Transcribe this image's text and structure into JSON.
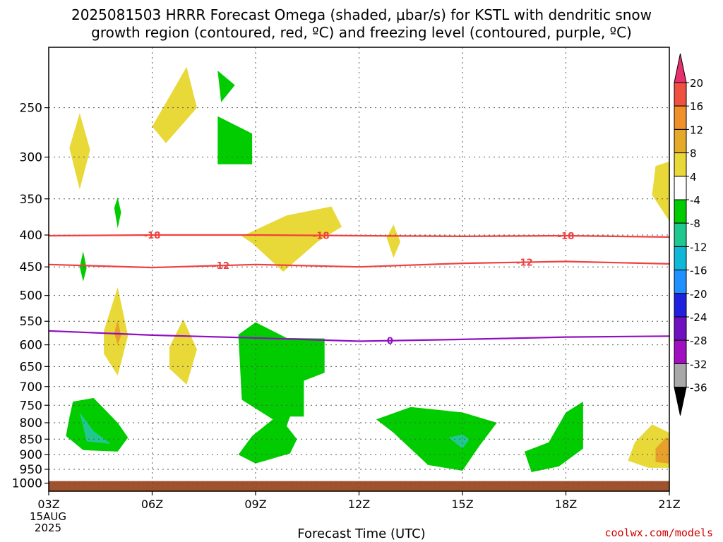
{
  "title_line1": "2025081503 HRRR Forecast Omega (shaded, μbar/s) for KSTL with dendritic snow",
  "title_line2": "growth region (contoured, red, ºC) and freezing level (contoured, purple, ºC)",
  "credit": "coolwx.com/models",
  "chart_data": {
    "type": "contour-timeheight",
    "xlabel": "Forecast Time (UTC)",
    "x_ticks": [
      "03Z",
      "06Z",
      "09Z",
      "12Z",
      "15Z",
      "18Z",
      "21Z"
    ],
    "x_tick_hours": [
      3,
      6,
      9,
      12,
      15,
      18,
      21
    ],
    "x_start_date": [
      "15AUG",
      "2025"
    ],
    "y_ticks": [
      250,
      300,
      350,
      400,
      450,
      500,
      550,
      600,
      650,
      700,
      750,
      800,
      850,
      900,
      950,
      1000
    ],
    "y_range_hpa": [
      200,
      1030
    ],
    "y_scale": "log-pressure",
    "grid": true,
    "colorbar": {
      "labels": [
        "20",
        "16",
        "12",
        "8",
        "4",
        "-4",
        "-8",
        "-12",
        "-16",
        "-20",
        "-24",
        "-28",
        "-32",
        "-36"
      ],
      "colors": [
        "#e8306e",
        "#f05040",
        "#f0902a",
        "#e6aa2a",
        "#e8d838",
        "#ffffff",
        "#00cc00",
        "#20c890",
        "#10b8d8",
        "#1e90ff",
        "#2020e0",
        "#7010c0",
        "#a010c0",
        "#a8a8a8",
        "#000000"
      ]
    },
    "contours": [
      {
        "label": "-18",
        "color": "#f04040",
        "values": [
          {
            "time": 3,
            "hpa": 401
          },
          {
            "time": 6,
            "hpa": 400
          },
          {
            "time": 9,
            "hpa": 400
          },
          {
            "time": 12,
            "hpa": 401
          },
          {
            "time": 15,
            "hpa": 402
          },
          {
            "time": 18,
            "hpa": 401
          },
          {
            "time": 21,
            "hpa": 403
          }
        ],
        "label_times": [
          6,
          10.9,
          18
        ]
      },
      {
        "label": "-12",
        "color": "#f04040",
        "values": [
          {
            "time": 3,
            "hpa": 446
          },
          {
            "time": 6,
            "hpa": 451
          },
          {
            "time": 9,
            "hpa": 446
          },
          {
            "time": 12,
            "hpa": 450
          },
          {
            "time": 15,
            "hpa": 444
          },
          {
            "time": 18,
            "hpa": 441
          },
          {
            "time": 21,
            "hpa": 445
          }
        ],
        "label_times": [
          8,
          16.8
        ]
      },
      {
        "label": "0",
        "color": "#9010c0",
        "values": [
          {
            "time": 3,
            "hpa": 570
          },
          {
            "time": 6,
            "hpa": 579
          },
          {
            "time": 9,
            "hpa": 585
          },
          {
            "time": 12,
            "hpa": 592
          },
          {
            "time": 15,
            "hpa": 588
          },
          {
            "time": 18,
            "hpa": 583
          },
          {
            "time": 21,
            "hpa": 581
          }
        ],
        "label_times": [
          12.9
        ]
      }
    ],
    "shaded_regions": [
      {
        "fill": "#e8d838",
        "points": [
          [
            3.6,
            290
          ],
          [
            3.9,
            255
          ],
          [
            4.2,
            292
          ],
          [
            3.9,
            338
          ]
        ]
      },
      {
        "fill": "#e8d838",
        "points": [
          [
            6,
            268
          ],
          [
            7,
            215
          ],
          [
            7.3,
            250
          ],
          [
            6.4,
            285
          ]
        ]
      },
      {
        "fill": "#00cc00",
        "points": [
          [
            7.9,
            218
          ],
          [
            8.4,
            230
          ],
          [
            8.0,
            245
          ]
        ]
      },
      {
        "fill": "#00cc00",
        "points": [
          [
            7.9,
            258
          ],
          [
            8.9,
            275
          ],
          [
            8.9,
            308
          ],
          [
            7.9,
            308
          ]
        ]
      },
      {
        "fill": "#00cc00",
        "points": [
          [
            4.9,
            362
          ],
          [
            5.0,
            348
          ],
          [
            5.1,
            368
          ],
          [
            5.0,
            390
          ]
        ]
      },
      {
        "fill": "#e8d838",
        "points": [
          [
            8.6,
            402
          ],
          [
            9.9,
            372
          ],
          [
            11.2,
            360
          ],
          [
            11.5,
            388
          ],
          [
            10.8,
            410
          ],
          [
            9.8,
            458
          ],
          [
            8.9,
            412
          ]
        ]
      },
      {
        "fill": "#e8d838",
        "points": [
          [
            12.8,
            404
          ],
          [
            13.0,
            385
          ],
          [
            13.2,
            410
          ],
          [
            13.0,
            435
          ]
        ]
      },
      {
        "fill": "#00cc00",
        "points": [
          [
            3.9,
            450
          ],
          [
            4.0,
            425
          ],
          [
            4.1,
            452
          ],
          [
            4.0,
            475
          ]
        ]
      },
      {
        "fill": "#e8d838",
        "points": [
          [
            4.6,
            570
          ],
          [
            5.0,
            485
          ],
          [
            5.3,
            580
          ],
          [
            5.0,
            672
          ],
          [
            4.6,
            620
          ]
        ]
      },
      {
        "fill": "#e8a02a",
        "points": [
          [
            4.9,
            575
          ],
          [
            5.0,
            548
          ],
          [
            5.1,
            580
          ],
          [
            5.0,
            600
          ]
        ]
      },
      {
        "fill": "#e8d838",
        "points": [
          [
            6.5,
            605
          ],
          [
            6.9,
            546
          ],
          [
            7.3,
            610
          ],
          [
            7.0,
            695
          ],
          [
            6.5,
            655
          ]
        ]
      },
      {
        "fill": "#e8d838",
        "points": [
          [
            20.6,
            310
          ],
          [
            21,
            305
          ],
          [
            21,
            380
          ],
          [
            20.5,
            345
          ]
        ]
      },
      {
        "fill": "#00cc00",
        "points": [
          [
            8.5,
            578
          ],
          [
            9,
            552
          ],
          [
            9.9,
            585
          ],
          [
            11,
            586
          ],
          [
            11,
            665
          ],
          [
            10.4,
            685
          ],
          [
            10.4,
            782
          ],
          [
            10,
            782
          ],
          [
            9.9,
            810
          ],
          [
            10.2,
            850
          ],
          [
            10.0,
            896
          ],
          [
            9,
            930
          ],
          [
            8.5,
            900
          ],
          [
            8.9,
            840
          ],
          [
            9.5,
            790
          ],
          [
            8.6,
            735
          ]
        ]
      },
      {
        "fill": "#00cc00",
        "points": [
          [
            3.7,
            740
          ],
          [
            4.3,
            730
          ],
          [
            5,
            800
          ],
          [
            5.3,
            845
          ],
          [
            5,
            890
          ],
          [
            4,
            885
          ],
          [
            3.5,
            840
          ],
          [
            3.6,
            785
          ]
        ]
      },
      {
        "fill": "#20c890",
        "points": [
          [
            3.9,
            770
          ],
          [
            4.3,
            825
          ],
          [
            4.8,
            865
          ],
          [
            4.1,
            857
          ]
        ]
      },
      {
        "fill": "#00cc00",
        "points": [
          [
            12.5,
            790
          ],
          [
            13.5,
            755
          ],
          [
            15,
            770
          ],
          [
            16,
            800
          ],
          [
            15.5,
            870
          ],
          [
            15.0,
            955
          ],
          [
            14,
            935
          ],
          [
            13,
            830
          ]
        ]
      },
      {
        "fill": "#20c890",
        "points": [
          [
            14.6,
            845
          ],
          [
            15,
            835
          ],
          [
            15.2,
            850
          ],
          [
            15,
            880
          ]
        ]
      },
      {
        "fill": "#00cc00",
        "points": [
          [
            16.8,
            890
          ],
          [
            17.5,
            860
          ],
          [
            18,
            770
          ],
          [
            18.5,
            740
          ],
          [
            18.5,
            800
          ],
          [
            18.5,
            880
          ],
          [
            17.8,
            940
          ],
          [
            17.0,
            960
          ]
        ]
      },
      {
        "fill": "#e8d838",
        "points": [
          [
            20,
            860
          ],
          [
            20.5,
            805
          ],
          [
            21,
            830
          ],
          [
            21,
            945
          ],
          [
            20.4,
            945
          ],
          [
            19.8,
            920
          ]
        ]
      },
      {
        "fill": "#e8a02a",
        "points": [
          [
            20.6,
            880
          ],
          [
            20.9,
            845
          ],
          [
            21,
            850
          ],
          [
            21,
            930
          ],
          [
            20.6,
            925
          ]
        ]
      }
    ],
    "ground_level_hpa": 1000
  }
}
